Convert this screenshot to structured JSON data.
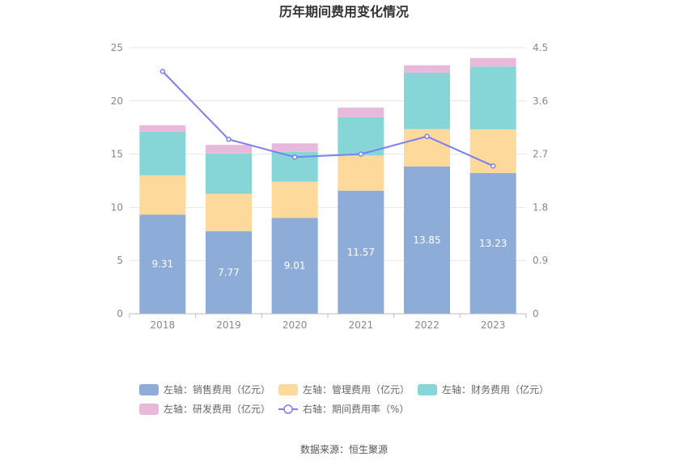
{
  "title": "历年期间费用变化情况",
  "source": "数据来源：恒生聚源",
  "colors": {
    "sales": "#8eacd8",
    "admin": "#fdd99c",
    "finance": "#86d6d8",
    "rd": "#e9b9dc",
    "rate": "#7b7fef"
  },
  "legend": [
    {
      "key": "sales",
      "label": "左轴：销售费用（亿元）",
      "kind": "bar"
    },
    {
      "key": "admin",
      "label": "左轴：管理费用（亿元）",
      "kind": "bar"
    },
    {
      "key": "finance",
      "label": "左轴：财务费用（亿元）",
      "kind": "bar"
    },
    {
      "key": "rd",
      "label": "左轴：研发费用（亿元）",
      "kind": "bar"
    },
    {
      "key": "rate",
      "label": "右轴：期间费用率（%）",
      "kind": "line"
    }
  ],
  "chart_data": {
    "type": "bar",
    "stacked": true,
    "categories": [
      "2018",
      "2019",
      "2020",
      "2021",
      "2022",
      "2023"
    ],
    "series": [
      {
        "key": "sales",
        "name": "左轴：销售费用（亿元）",
        "axis": "left",
        "values": [
          9.31,
          7.77,
          9.01,
          11.57,
          13.85,
          13.23
        ],
        "labels": [
          "9.31",
          "7.77",
          "9.01",
          "11.57",
          "13.85",
          "13.23"
        ]
      },
      {
        "key": "admin",
        "name": "左轴：管理费用（亿元）",
        "axis": "left",
        "values": [
          3.7,
          3.5,
          3.4,
          3.3,
          3.5,
          4.1
        ]
      },
      {
        "key": "finance",
        "name": "左轴：财务费用（亿元）",
        "axis": "left",
        "values": [
          4.1,
          3.8,
          2.8,
          3.6,
          5.3,
          5.9
        ]
      },
      {
        "key": "rd",
        "name": "左轴：研发费用（亿元）",
        "axis": "left",
        "values": [
          0.6,
          0.8,
          0.8,
          0.9,
          0.7,
          0.8
        ]
      },
      {
        "key": "rate",
        "name": "右轴：期间费用率（%）",
        "axis": "right",
        "type": "line",
        "values": [
          4.1,
          2.95,
          2.65,
          2.7,
          3.0,
          2.5
        ]
      }
    ],
    "left_axis": {
      "min": 0,
      "max": 25,
      "ticks": [
        "0",
        "5",
        "10",
        "15",
        "20",
        "25"
      ]
    },
    "right_axis": {
      "min": 0,
      "max": 4.5,
      "ticks": [
        "0",
        "0.9",
        "1.8",
        "2.7",
        "3.6",
        "4.5"
      ]
    },
    "grid": true,
    "legend_position": "bottom"
  }
}
